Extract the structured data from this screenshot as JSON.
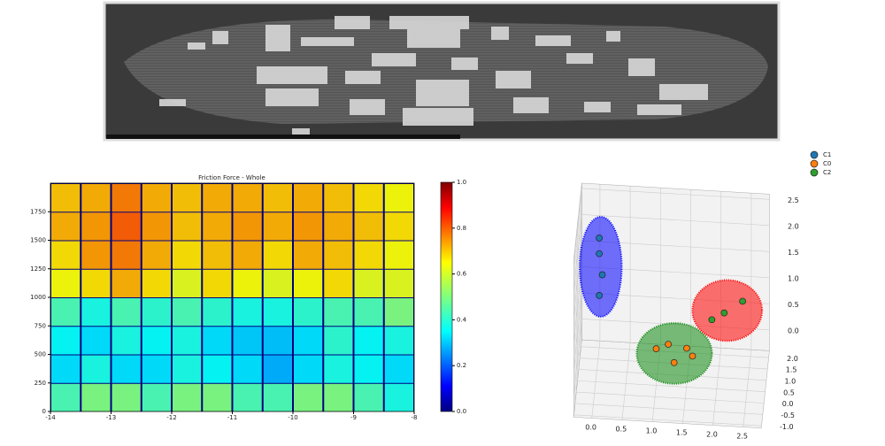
{
  "chart_data": [
    {
      "type": "heatmap",
      "title": "Friction Force - Whole",
      "colormap": "jet",
      "xlim": [
        -14,
        -8
      ],
      "ylim": [
        0,
        2000
      ],
      "xticks": [
        -14,
        -13,
        -12,
        -11,
        -10,
        -9,
        -8
      ],
      "yticks": [
        0,
        250,
        500,
        750,
        1000,
        1250,
        1500,
        1750
      ],
      "xbins": [
        -14,
        -13.5,
        -13,
        -12.5,
        -12,
        -11.5,
        -11,
        -10.5,
        -10,
        -9.5,
        -9,
        -8.5,
        -8
      ],
      "ybins": [
        0,
        250,
        500,
        750,
        1000,
        1250,
        1500,
        1750,
        2000
      ],
      "values": [
        [
          0.45,
          0.5,
          0.5,
          0.45,
          0.5,
          0.5,
          0.45,
          0.45,
          0.5,
          0.5,
          0.45,
          0.4
        ],
        [
          0.35,
          0.4,
          0.35,
          0.35,
          0.4,
          0.38,
          0.35,
          0.3,
          0.35,
          0.4,
          0.38,
          0.35
        ],
        [
          0.38,
          0.35,
          0.4,
          0.38,
          0.4,
          0.35,
          0.33,
          0.32,
          0.35,
          0.42,
          0.38,
          0.4
        ],
        [
          0.45,
          0.4,
          0.45,
          0.42,
          0.45,
          0.42,
          0.4,
          0.4,
          0.42,
          0.45,
          0.45,
          0.5
        ],
        [
          0.62,
          0.65,
          0.7,
          0.65,
          0.6,
          0.65,
          0.62,
          0.6,
          0.62,
          0.65,
          0.6,
          0.6
        ],
        [
          0.65,
          0.72,
          0.75,
          0.7,
          0.65,
          0.68,
          0.7,
          0.65,
          0.7,
          0.68,
          0.65,
          0.62
        ],
        [
          0.7,
          0.72,
          0.78,
          0.72,
          0.68,
          0.7,
          0.72,
          0.7,
          0.72,
          0.7,
          0.68,
          0.65
        ],
        [
          0.68,
          0.7,
          0.75,
          0.7,
          0.68,
          0.7,
          0.7,
          0.68,
          0.7,
          0.68,
          0.65,
          0.62
        ]
      ],
      "colorbar_lim": [
        0,
        1
      ],
      "colorbar_ticks": [
        {
          "value": 0,
          "label": "0.0"
        },
        0.2,
        0.4,
        0.6,
        0.8,
        {
          "value": 1,
          "label": "1.0"
        }
      ]
    },
    {
      "type": "scatter3d",
      "legend": "upper right",
      "xlim": [
        -0.3,
        2.8
      ],
      "ylim": [
        -1.1,
        2.3
      ],
      "zlim": [
        -0.4,
        2.6
      ],
      "xticks": [
        {
          "value": 0,
          "label": "0.0"
        },
        0.5,
        {
          "value": 1,
          "label": "1.0"
        },
        1.5,
        {
          "value": 2,
          "label": "2.0"
        },
        2.5
      ],
      "yticks": [
        {
          "value": -1,
          "label": "-1.0"
        },
        -0.5,
        {
          "value": 0,
          "label": "0.0"
        },
        0.5,
        {
          "value": 1,
          "label": "1.0"
        },
        1.5,
        {
          "value": 2,
          "label": "2.0"
        }
      ],
      "zticks": [
        {
          "value": 0,
          "label": "0.0"
        },
        0.5,
        {
          "value": 1,
          "label": "1.0"
        },
        1.5,
        {
          "value": 2,
          "label": "2.0"
        },
        2.5
      ],
      "series": [
        {
          "name": "C1",
          "color": "#1f77b4",
          "x": [
            0.0,
            0.0,
            0.05,
            0.0
          ],
          "y": [
            2.0,
            2.0,
            2.0,
            2.0
          ],
          "z": [
            1.7,
            1.4,
            1.0,
            0.6
          ]
        },
        {
          "name": "C0",
          "color": "#ff7f0e",
          "x": [
            1.0,
            1.2,
            1.3,
            1.5,
            1.6
          ],
          "y": [
            0.5,
            0.5,
            0.4,
            0.6,
            0.5
          ],
          "z": [
            0.3,
            0.4,
            0.1,
            0.3,
            0.2
          ]
        },
        {
          "name": "C2",
          "color": "#2ca02c",
          "x": [
            1.9,
            2.1,
            2.4
          ],
          "y": [
            1.0,
            1.1,
            1.2
          ],
          "z": [
            0.7,
            0.8,
            1.0
          ]
        }
      ]
    }
  ]
}
